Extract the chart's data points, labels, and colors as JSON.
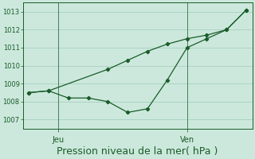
{
  "background_color": "#cce8dc",
  "grid_color": "#a8cfc0",
  "line_color": "#1a5c2a",
  "title": "Pression niveau de la mer( hPa )",
  "title_fontsize": 9,
  "ylim": [
    1006.5,
    1013.5
  ],
  "yticks": [
    1007,
    1008,
    1009,
    1010,
    1011,
    1012,
    1013
  ],
  "line1_x": [
    0,
    1,
    2,
    3,
    4,
    5,
    6,
    7,
    8,
    9,
    10,
    11
  ],
  "line1_y": [
    1008.5,
    1008.6,
    1008.2,
    1008.2,
    1008.0,
    1007.4,
    1007.6,
    1009.2,
    1011.0,
    1011.5,
    1012.0,
    1013.1
  ],
  "line2_x": [
    0,
    1,
    4,
    5,
    6,
    7,
    8,
    9,
    10,
    11
  ],
  "line2_y": [
    1008.5,
    1008.6,
    1009.8,
    1010.3,
    1010.8,
    1011.2,
    1011.5,
    1011.7,
    1012.0,
    1013.1
  ],
  "jeu_x": 1.5,
  "ven_x": 8.0,
  "tick_label_jeu": "Jeu",
  "tick_label_ven": "Ven",
  "xlim": [
    -0.3,
    11.3
  ]
}
